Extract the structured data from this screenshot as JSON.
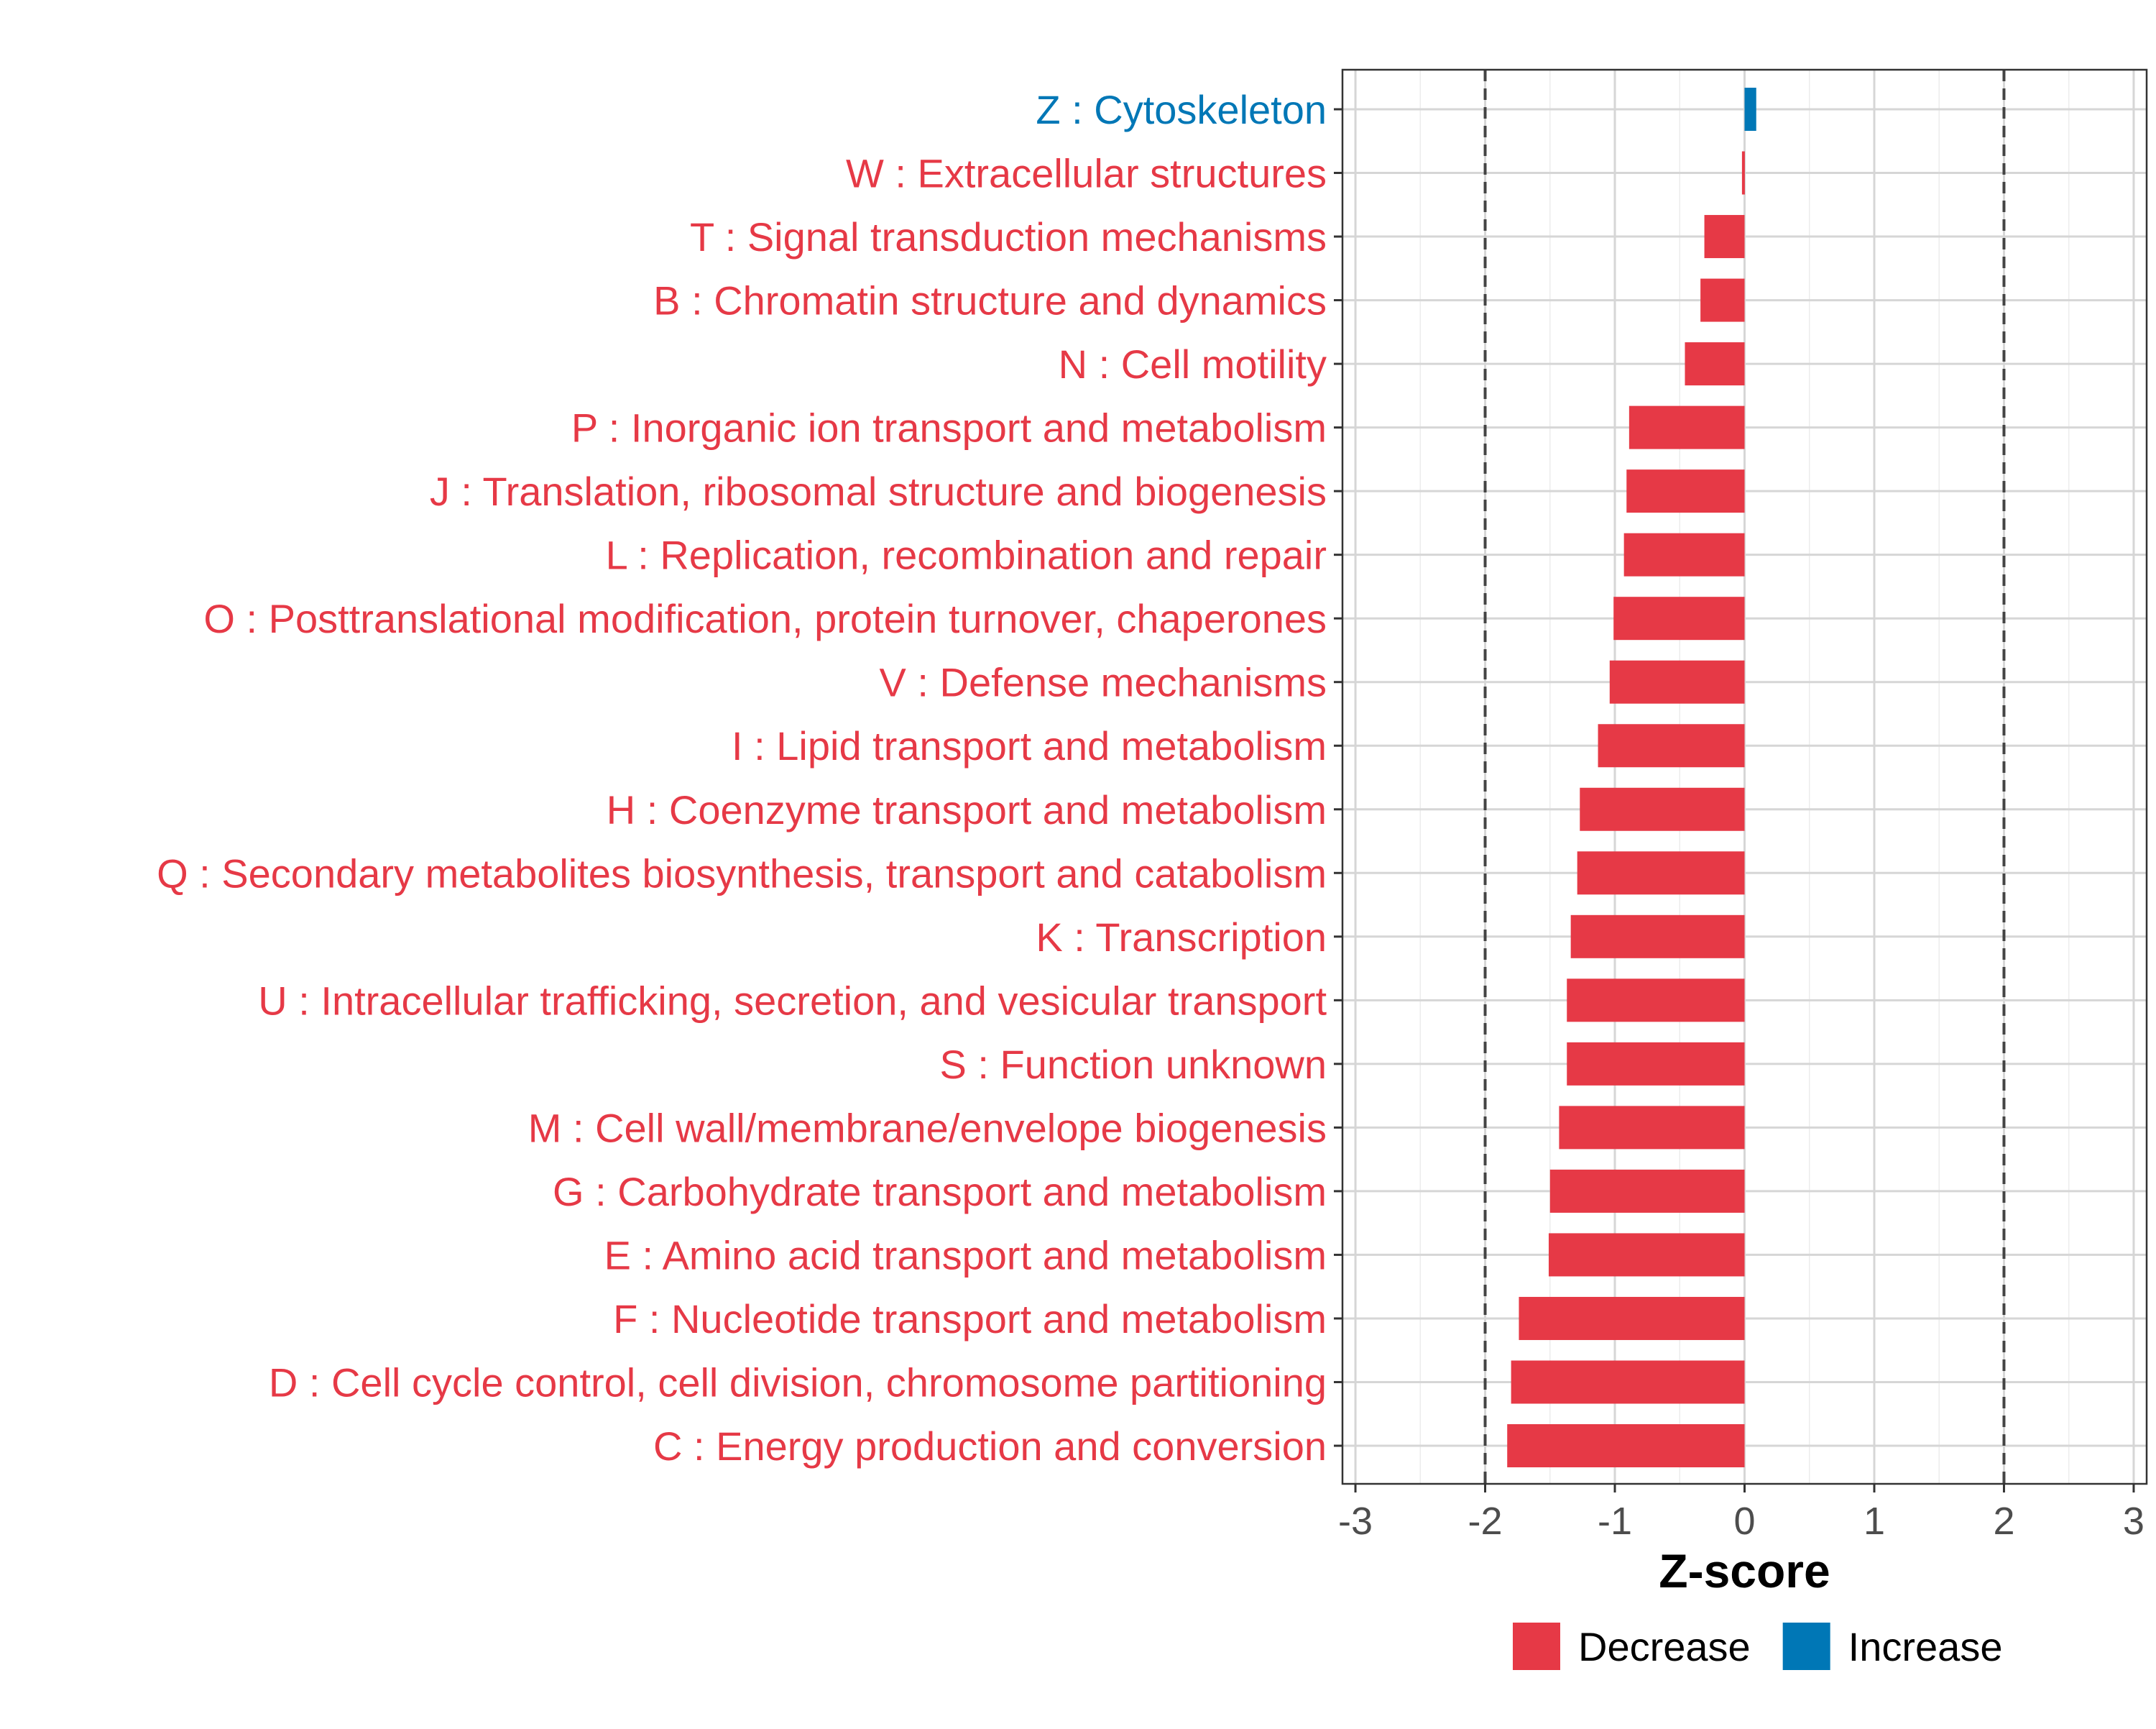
{
  "chart_data": {
    "type": "bar",
    "orientation": "horizontal",
    "xlabel": "Z-score",
    "xlim": [
      -3.1,
      3.1
    ],
    "xticks": [
      -3,
      -2,
      -1,
      0,
      1,
      2,
      3
    ],
    "xtick_labels": [
      "-3",
      "-2",
      "-1",
      "0",
      "1",
      "2",
      "3"
    ],
    "reference_lines": [
      -2,
      2
    ],
    "grid": true,
    "colors": {
      "Decrease": "#e63946",
      "Increase": "#0077b6"
    },
    "categories": [
      "Z : Cytoskeleton",
      "W : Extracellular structures",
      "T : Signal transduction mechanisms",
      "B : Chromatin structure and dynamics",
      "N : Cell motility",
      "P : Inorganic ion transport and metabolism",
      "J : Translation, ribosomal structure and biogenesis",
      "L : Replication, recombination and repair",
      "O : Posttranslational modification, protein turnover, chaperones",
      "V : Defense mechanisms",
      "I : Lipid transport and metabolism",
      "H : Coenzyme transport and metabolism",
      "Q : Secondary metabolites biosynthesis, transport and catabolism",
      "K : Transcription",
      "U : Intracellular trafficking, secretion, and vesicular transport",
      "S : Function unknown",
      "M : Cell wall/membrane/envelope biogenesis",
      "G : Carbohydrate transport and metabolism",
      "E : Amino acid transport and metabolism",
      "F : Nucleotide transport and metabolism",
      "D : Cell cycle control, cell division, chromosome partitioning",
      "C : Energy production and conversion"
    ],
    "values": [
      0.09,
      -0.02,
      -0.31,
      -0.34,
      -0.46,
      -0.89,
      -0.91,
      -0.93,
      -1.01,
      -1.04,
      -1.13,
      -1.27,
      -1.29,
      -1.34,
      -1.37,
      -1.37,
      -1.43,
      -1.5,
      -1.51,
      -1.74,
      -1.8,
      -1.83
    ],
    "groups": [
      "Increase",
      "Decrease",
      "Decrease",
      "Decrease",
      "Decrease",
      "Decrease",
      "Decrease",
      "Decrease",
      "Decrease",
      "Decrease",
      "Decrease",
      "Decrease",
      "Decrease",
      "Decrease",
      "Decrease",
      "Decrease",
      "Decrease",
      "Decrease",
      "Decrease",
      "Decrease",
      "Decrease",
      "Decrease"
    ],
    "legend": {
      "position": "bottom",
      "entries": [
        "Decrease",
        "Increase"
      ]
    }
  }
}
